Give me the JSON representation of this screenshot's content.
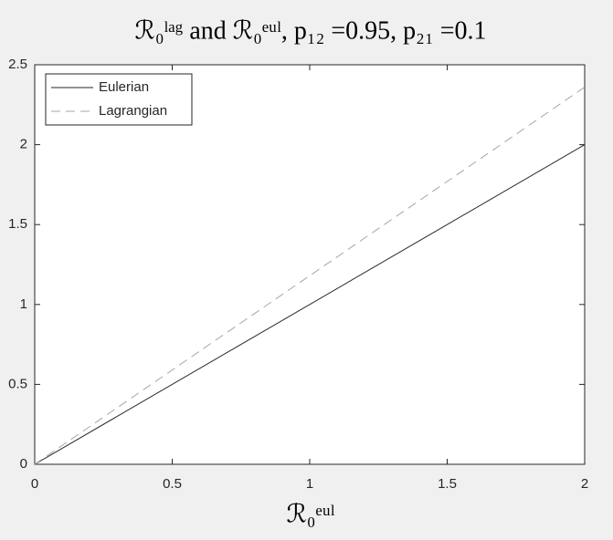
{
  "chart_data": {
    "type": "line",
    "title": "ℛ₀ˡᵃᵍ and ℛ₀ᵉᵘˡ, p₁₂ =0.95, p₂₁ =0.1",
    "x_label": "ℛ₀ᵉᵘˡ",
    "x": [
      0,
      2
    ],
    "series": [
      {
        "name": "Eulerian",
        "color": "#262626",
        "dash": "solid",
        "values": [
          0,
          2
        ]
      },
      {
        "name": "Lagrangian",
        "color": "#a6a6a6",
        "dash": "dashed",
        "values": [
          0,
          2.36
        ]
      }
    ],
    "xlim": [
      0,
      2
    ],
    "xticks": [
      0,
      0.5,
      1,
      1.5,
      2
    ],
    "ylim": [
      0,
      2.5
    ],
    "yticks": [
      0,
      0.5,
      1,
      1.5,
      2,
      2.5
    ],
    "grid": false,
    "legend": "top-left"
  }
}
